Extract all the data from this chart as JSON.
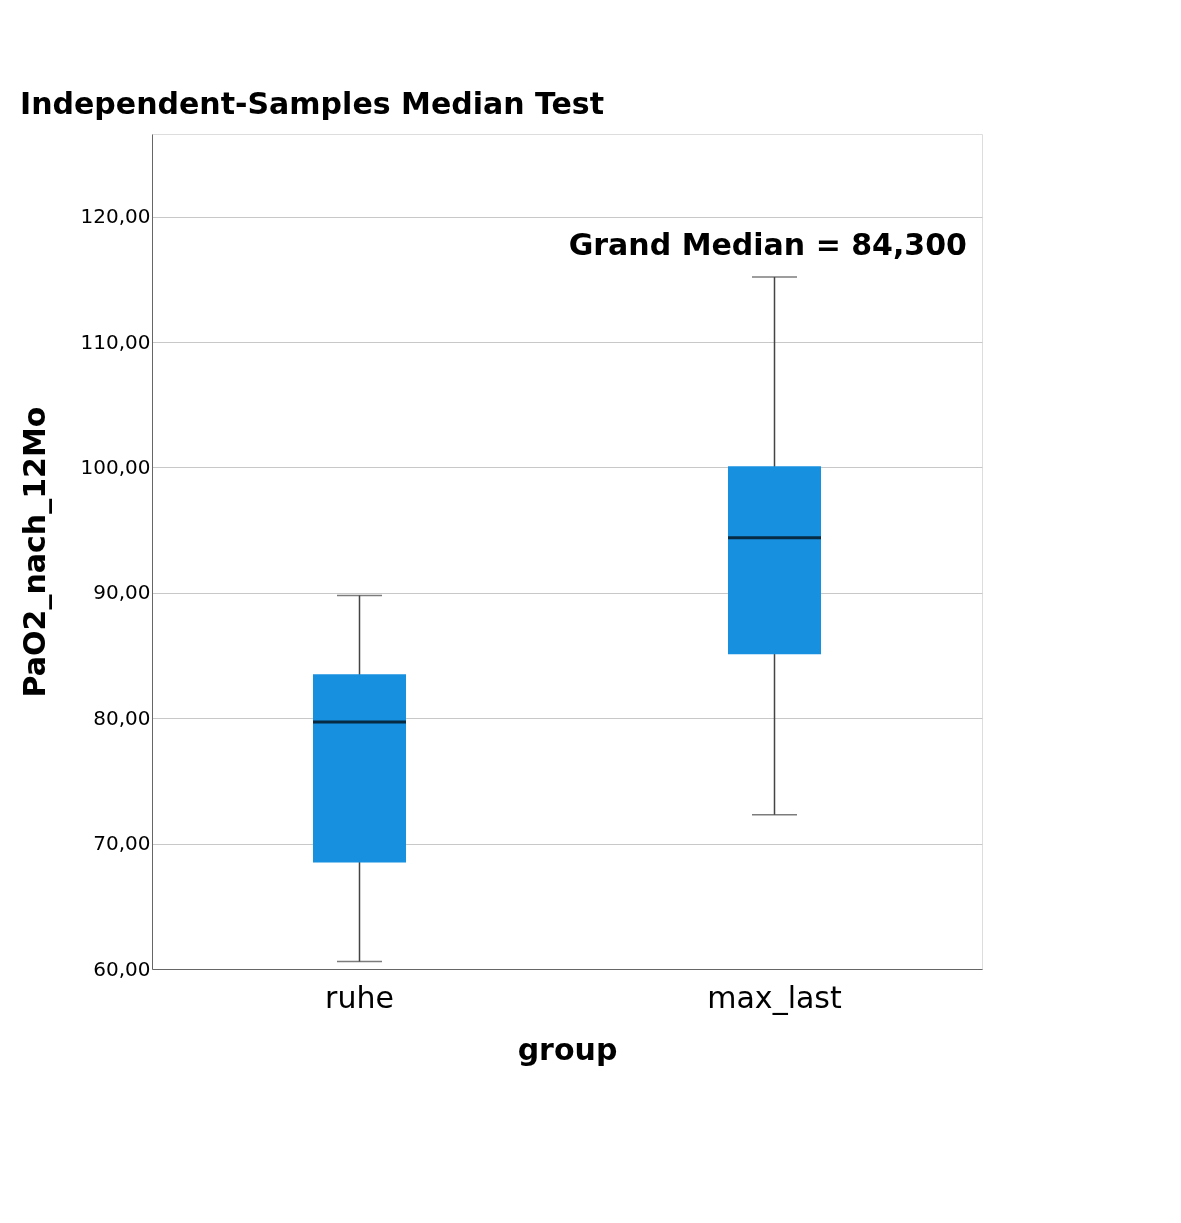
{
  "chart_data": {
    "type": "box",
    "title": "Independent-Samples Median Test",
    "xlabel": "group",
    "ylabel": "PaO2_nach_12Mo",
    "categories": [
      "ruhe",
      "max_last"
    ],
    "series": [
      {
        "color": "#1790e0",
        "boxes": [
          {
            "low": 60.6,
            "q1": 68.5,
            "median": 79.7,
            "q3": 83.5,
            "high": 89.8
          },
          {
            "low": 72.3,
            "q1": 85.1,
            "median": 94.4,
            "q3": 100.1,
            "high": 115.2
          }
        ]
      }
    ],
    "ylim": [
      60,
      126.6
    ],
    "yticks": [
      {
        "value": 60,
        "label": "60,00"
      },
      {
        "value": 70,
        "label": "70,00"
      },
      {
        "value": 80,
        "label": "80,00"
      },
      {
        "value": 90,
        "label": "90,00"
      },
      {
        "value": 100,
        "label": "100,00"
      },
      {
        "value": 110,
        "label": "110,00"
      },
      {
        "value": 120,
        "label": "120,00"
      }
    ],
    "grid": "y",
    "annotations": [
      "Grand Median = 84,300"
    ]
  }
}
